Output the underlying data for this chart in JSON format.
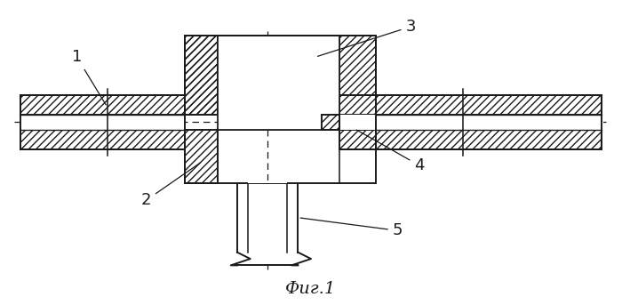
{
  "title": "Фиг.1",
  "background": "#ffffff",
  "line_color": "#1a1a1a",
  "lw": 1.4,
  "label_fontsize": 13
}
